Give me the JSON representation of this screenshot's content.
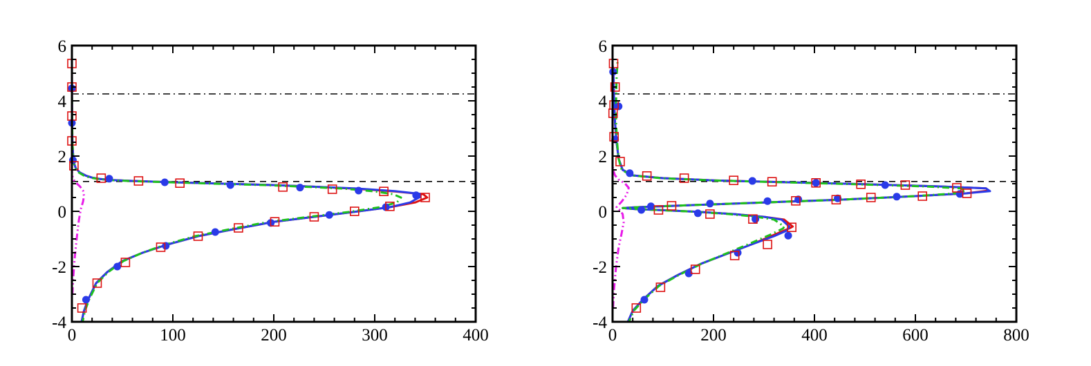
{
  "chart_data": [
    {
      "type": "line",
      "title": "",
      "xlabel": "",
      "ylabel": "",
      "xlim": [
        0,
        400
      ],
      "ylim": [
        -4,
        6
      ],
      "xticks": [
        0,
        100,
        200,
        300,
        400
      ],
      "yticks": [
        -4,
        -2,
        0,
        2,
        4,
        6
      ],
      "xtick_labels": [
        "0",
        "100",
        "200",
        "300",
        "400"
      ],
      "ytick_labels": [
        "-4",
        "-2",
        "0",
        "2",
        "4",
        "6"
      ],
      "hlines": [
        {
          "y": 4.25,
          "style": "dashdot",
          "color": "#000000"
        },
        {
          "y": 1.08,
          "style": "dashed",
          "color": "#000000"
        }
      ],
      "series": [
        {
          "name": "red-solid",
          "style": "solid",
          "color": "#dd1111",
          "x": [
            9,
            12,
            16,
            24,
            35,
            50,
            70,
            95,
            125,
            160,
            200,
            240,
            280,
            315,
            340,
            352,
            348,
            320,
            280,
            240,
            200,
            160,
            120,
            85,
            60,
            40,
            28,
            20,
            14,
            8,
            4,
            1.5,
            0.5,
            0.2,
            0.1,
            0
          ],
          "y": [
            -4.1,
            -3.6,
            -3.2,
            -2.6,
            -2.2,
            -1.8,
            -1.5,
            -1.2,
            -0.9,
            -0.65,
            -0.38,
            -0.2,
            -0.02,
            0.15,
            0.32,
            0.5,
            0.62,
            0.72,
            0.82,
            0.89,
            0.95,
            0.99,
            1.03,
            1.07,
            1.1,
            1.13,
            1.17,
            1.22,
            1.29,
            1.4,
            1.55,
            1.8,
            2.5,
            3.5,
            4.5,
            5.5
          ]
        },
        {
          "name": "blue-solid",
          "style": "solid",
          "color": "#2a3ae8",
          "x": [
            9,
            12,
            16,
            24,
            35,
            50,
            70,
            95,
            125,
            160,
            200,
            240,
            280,
            315,
            335,
            345,
            345,
            320,
            280,
            240,
            200,
            160,
            120,
            85,
            60,
            40,
            28,
            20,
            14,
            8,
            4,
            1.5,
            0.5,
            0.2,
            0.1,
            0
          ],
          "y": [
            -4.1,
            -3.6,
            -3.2,
            -2.6,
            -2.2,
            -1.8,
            -1.5,
            -1.2,
            -0.9,
            -0.65,
            -0.38,
            -0.2,
            -0.02,
            0.15,
            0.32,
            0.52,
            0.63,
            0.73,
            0.83,
            0.89,
            0.95,
            0.99,
            1.03,
            1.07,
            1.1,
            1.13,
            1.17,
            1.22,
            1.29,
            1.4,
            1.55,
            1.8,
            2.5,
            3.5,
            4.5,
            5.5
          ]
        },
        {
          "name": "green-dashdot",
          "style": "dashdot",
          "color": "#1ec01e",
          "x": [
            10,
            13,
            17,
            25,
            36,
            51,
            70,
            93,
            122,
            156,
            195,
            235,
            275,
            305,
            322,
            326,
            318,
            300,
            270,
            230,
            190,
            150,
            115,
            80,
            55,
            38,
            26,
            18,
            12,
            7,
            3.5,
            1.5,
            0.5,
            0.2,
            0.1,
            0
          ],
          "y": [
            -4.1,
            -3.6,
            -3.2,
            -2.6,
            -2.2,
            -1.8,
            -1.5,
            -1.2,
            -0.9,
            -0.65,
            -0.38,
            -0.2,
            -0.02,
            0.15,
            0.32,
            0.5,
            0.62,
            0.72,
            0.82,
            0.89,
            0.95,
            0.99,
            1.03,
            1.07,
            1.1,
            1.13,
            1.17,
            1.22,
            1.29,
            1.4,
            1.55,
            1.8,
            2.5,
            3.5,
            4.5,
            5.5
          ]
        },
        {
          "name": "magenta-dashdotdot",
          "style": "dashdotdot",
          "color": "#e81be8",
          "x": [
            0.5,
            1.5,
            3,
            5,
            7,
            9,
            11,
            12,
            11,
            8,
            5,
            2.5,
            1,
            0.3,
            0
          ],
          "y": [
            -3.0,
            -2.3,
            -1.6,
            -0.9,
            -0.3,
            0.1,
            0.35,
            0.55,
            0.75,
            0.9,
            1.0,
            1.1,
            1.2,
            1.35,
            1.5
          ]
        }
      ],
      "markers": [
        {
          "name": "blue-circles",
          "shape": "circle",
          "color": "#2a3ae8",
          "x": [
            14,
            45,
            93,
            142,
            197,
            255,
            311,
            341,
            284,
            226,
            157,
            92,
            37,
            1,
            0,
            0,
            0
          ],
          "y": [
            -3.2,
            -2.0,
            -1.25,
            -0.75,
            -0.42,
            -0.13,
            0.15,
            0.58,
            0.75,
            0.86,
            0.95,
            1.05,
            1.18,
            1.85,
            3.2,
            4.45,
            4.45
          ]
        },
        {
          "name": "red-squares",
          "shape": "square",
          "color": "#dd1111",
          "x": [
            10,
            25,
            53,
            88,
            125,
            165,
            201,
            240,
            280,
            315,
            350,
            309,
            258,
            209,
            107,
            66,
            29,
            2,
            0,
            0,
            0,
            0
          ],
          "y": [
            -3.5,
            -2.6,
            -1.85,
            -1.3,
            -0.9,
            -0.6,
            -0.38,
            -0.2,
            0,
            0.18,
            0.5,
            0.72,
            0.8,
            0.88,
            1.02,
            1.1,
            1.2,
            1.65,
            2.55,
            3.45,
            4.5,
            5.35
          ]
        }
      ]
    },
    {
      "type": "line",
      "title": "",
      "xlabel": "",
      "ylabel": "",
      "xlim": [
        0,
        800
      ],
      "ylim": [
        -4,
        6
      ],
      "xticks": [
        0,
        200,
        400,
        600,
        800
      ],
      "yticks": [
        -4,
        -2,
        0,
        2,
        4,
        6
      ],
      "xtick_labels": [
        "0",
        "200",
        "400",
        "600",
        "800"
      ],
      "ytick_labels": [
        "-4",
        "-2",
        "0",
        "2",
        "4",
        "6"
      ],
      "hlines": [
        {
          "y": 4.25,
          "style": "dashdot",
          "color": "#000000"
        },
        {
          "y": 1.08,
          "style": "dashed",
          "color": "#000000"
        }
      ],
      "series": [
        {
          "name": "red-solid",
          "style": "solid",
          "color": "#dd1111",
          "x": [
            28,
            40,
            60,
            90,
            130,
            175,
            225,
            275,
            320,
            350,
            357,
            340,
            300,
            240,
            170,
            100,
            45,
            20,
            50,
            150,
            300,
            450,
            600,
            700,
            745,
            740,
            650,
            500,
            350,
            200,
            100,
            40,
            20,
            12,
            8,
            5,
            3,
            2,
            0
          ],
          "y": [
            -4.1,
            -3.6,
            -3.2,
            -2.7,
            -2.3,
            -1.9,
            -1.55,
            -1.2,
            -0.85,
            -0.62,
            -0.55,
            -0.3,
            -0.2,
            -0.1,
            -0.02,
            0.04,
            0.08,
            0.12,
            0.15,
            0.22,
            0.32,
            0.42,
            0.55,
            0.65,
            0.75,
            0.83,
            0.9,
            0.98,
            1.05,
            1.12,
            1.2,
            1.3,
            1.5,
            1.9,
            2.5,
            3.2,
            4.0,
            4.8,
            5.3
          ]
        },
        {
          "name": "blue-solid",
          "style": "solid",
          "color": "#2a3ae8",
          "x": [
            28,
            40,
            60,
            90,
            130,
            175,
            225,
            275,
            320,
            345,
            350,
            335,
            300,
            240,
            170,
            100,
            45,
            20,
            50,
            150,
            300,
            450,
            600,
            700,
            748,
            740,
            650,
            500,
            350,
            200,
            100,
            40,
            20,
            12,
            8,
            5,
            3,
            2,
            0
          ],
          "y": [
            -4.1,
            -3.6,
            -3.2,
            -2.7,
            -2.3,
            -1.9,
            -1.55,
            -1.2,
            -0.9,
            -0.7,
            -0.55,
            -0.3,
            -0.2,
            -0.1,
            -0.02,
            0.04,
            0.08,
            0.12,
            0.15,
            0.22,
            0.32,
            0.42,
            0.55,
            0.65,
            0.73,
            0.83,
            0.9,
            0.98,
            1.05,
            1.12,
            1.2,
            1.3,
            1.5,
            1.9,
            2.5,
            3.2,
            4.0,
            4.8,
            5.3
          ]
        },
        {
          "name": "green-dashdot",
          "style": "dashdot",
          "color": "#1ec01e",
          "x": [
            30,
            42,
            62,
            92,
            132,
            176,
            222,
            268,
            312,
            338,
            340,
            320,
            285,
            230,
            165,
            100,
            45,
            20,
            50,
            150,
            300,
            450,
            600,
            680,
            700,
            690,
            620,
            480,
            340,
            195,
            95,
            38,
            18,
            12,
            9,
            7,
            7,
            8,
            10
          ],
          "y": [
            -4.1,
            -3.6,
            -3.2,
            -2.7,
            -2.3,
            -1.9,
            -1.55,
            -1.2,
            -0.85,
            -0.62,
            -0.55,
            -0.3,
            -0.2,
            -0.1,
            -0.02,
            0.04,
            0.08,
            0.12,
            0.15,
            0.22,
            0.32,
            0.42,
            0.55,
            0.65,
            0.75,
            0.83,
            0.9,
            0.98,
            1.05,
            1.12,
            1.2,
            1.3,
            1.5,
            1.9,
            2.5,
            3.2,
            4.0,
            4.8,
            5.45
          ]
        },
        {
          "name": "magenta-dashdotdot",
          "style": "dashdotdot",
          "color": "#e81be8",
          "x": [
            1,
            3,
            7,
            12,
            18,
            22,
            20,
            14,
            8,
            18,
            28,
            32,
            25,
            12,
            5,
            1,
            0
          ],
          "y": [
            -3.5,
            -2.8,
            -2.0,
            -1.3,
            -0.8,
            -0.4,
            -0.1,
            0.05,
            0.15,
            0.35,
            0.6,
            0.85,
            1.0,
            1.15,
            1.3,
            1.5,
            1.7
          ]
        }
      ],
      "markers": [
        {
          "name": "blue-circles",
          "shape": "circle",
          "color": "#2a3ae8",
          "x": [
            63,
            151,
            248,
            283,
            348,
            57,
            76,
            169,
            193,
            277,
            307,
            368,
            446,
            563,
            688,
            540,
            403,
            277,
            34,
            12,
            5,
            1
          ],
          "y": [
            -3.2,
            -2.25,
            -1.5,
            -0.28,
            -0.88,
            0.05,
            0.18,
            -0.07,
            0.28,
            1.1,
            0.37,
            0.43,
            0.47,
            0.53,
            0.63,
            0.95,
            1.03,
            1.1,
            1.38,
            3.8,
            2.6,
            5.05
          ]
        },
        {
          "name": "red-squares",
          "shape": "square",
          "color": "#dd1111",
          "x": [
            47,
            95,
            164,
            242,
            307,
            355,
            91,
            117,
            193,
            278,
            363,
            443,
            512,
            614,
            702,
            682,
            580,
            492,
            403,
            316,
            240,
            142,
            68,
            15,
            3,
            1,
            3,
            5,
            2
          ],
          "y": [
            -3.5,
            -2.75,
            -2.1,
            -1.6,
            -1.2,
            -0.58,
            0.05,
            0.2,
            -0.1,
            -0.28,
            0.38,
            0.42,
            0.5,
            0.55,
            0.65,
            0.85,
            0.95,
            0.98,
            1.03,
            1.07,
            1.12,
            1.2,
            1.28,
            1.8,
            2.7,
            3.55,
            3.85,
            4.5,
            5.35
          ]
        }
      ]
    }
  ]
}
